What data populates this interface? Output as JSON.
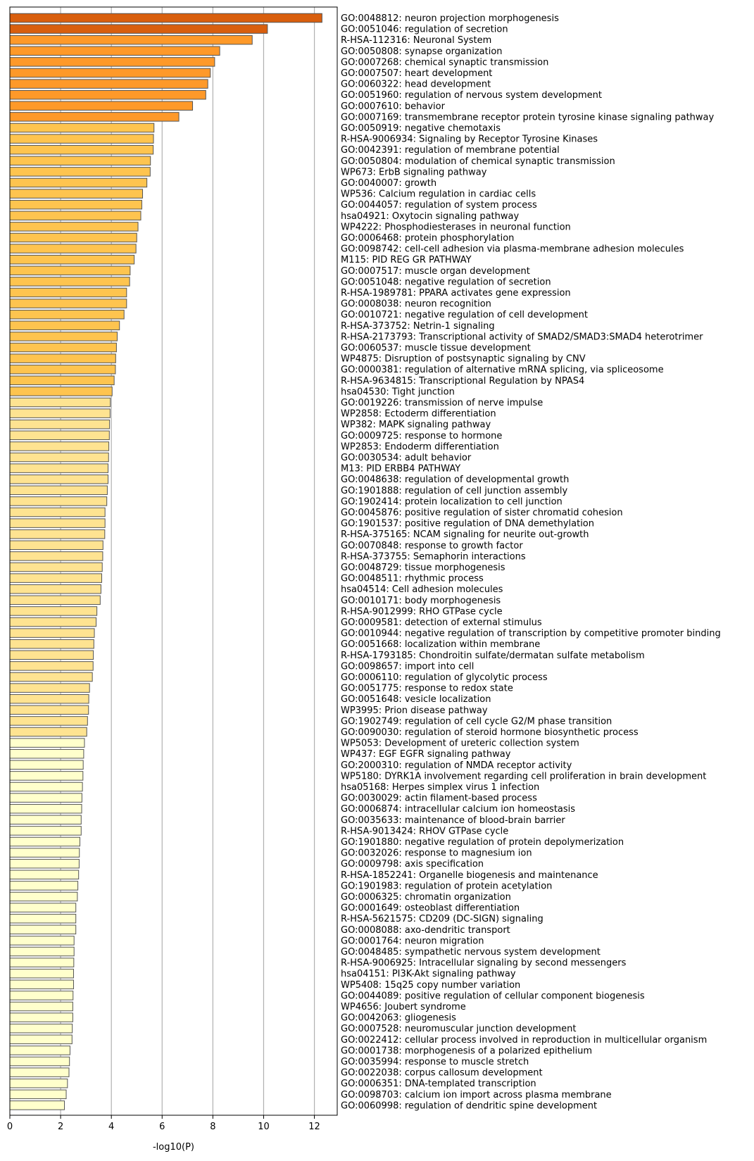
{
  "chart_data": {
    "type": "bar",
    "orientation": "horizontal",
    "xlabel": "-log10(P)",
    "xlim": [
      0,
      12.9
    ],
    "xticks": [
      0,
      2,
      4,
      6,
      8,
      10,
      12
    ],
    "grid": "vertical",
    "colors": {
      "tier1": "#d95f0e",
      "tier2": "#fe9929",
      "tier3": "#fec44f",
      "tier4": "#fee391",
      "tier5": "#ffffcc",
      "edge": "#555555",
      "grid": "#b0b0b0"
    },
    "categories": [
      "GO:0048812: neuron projection morphogenesis",
      "GO:0051046: regulation of secretion",
      "R-HSA-112316: Neuronal System",
      "GO:0050808: synapse organization",
      "GO:0007268: chemical synaptic transmission",
      "GO:0007507: heart development",
      "GO:0060322: head development",
      "GO:0051960: regulation of nervous system development",
      "GO:0007610: behavior",
      "GO:0007169: transmembrane receptor protein tyrosine kinase signaling pathway",
      "GO:0050919: negative chemotaxis",
      "R-HSA-9006934: Signaling by Receptor Tyrosine Kinases",
      "GO:0042391: regulation of membrane potential",
      "GO:0050804: modulation of chemical synaptic transmission",
      "WP673: ErbB signaling pathway",
      "GO:0040007: growth",
      "WP536: Calcium regulation in cardiac cells",
      "GO:0044057: regulation of system process",
      "hsa04921: Oxytocin signaling pathway",
      "WP4222: Phosphodiesterases in neuronal function",
      "GO:0006468: protein phosphorylation",
      "GO:0098742: cell-cell adhesion via plasma-membrane adhesion molecules",
      "M115: PID REG GR PATHWAY",
      "GO:0007517: muscle organ development",
      "GO:0051048: negative regulation of secretion",
      "R-HSA-1989781: PPARA activates gene expression",
      "GO:0008038: neuron recognition",
      "GO:0010721: negative regulation of cell development",
      "R-HSA-373752: Netrin-1 signaling",
      "R-HSA-2173793: Transcriptional activity of SMAD2/SMAD3:SMAD4 heterotrimer",
      "GO:0060537: muscle tissue development",
      "WP4875: Disruption of postsynaptic signaling by CNV",
      "GO:0000381: regulation of alternative mRNA splicing, via spliceosome",
      "R-HSA-9634815: Transcriptional Regulation by NPAS4",
      "hsa04530: Tight junction",
      "GO:0019226: transmission of nerve impulse",
      "WP2858: Ectoderm differentiation",
      "WP382: MAPK signaling pathway",
      "GO:0009725: response to hormone",
      "WP2853: Endoderm differentiation",
      "GO:0030534: adult behavior",
      "M13: PID ERBB4 PATHWAY",
      "GO:0048638: regulation of developmental growth",
      "GO:1901888: regulation of cell junction assembly",
      "GO:1902414: protein localization to cell junction",
      "GO:0045876: positive regulation of sister chromatid cohesion",
      "GO:1901537: positive regulation of DNA demethylation",
      "R-HSA-375165: NCAM signaling for neurite out-growth",
      "GO:0070848: response to growth factor",
      "R-HSA-373755: Semaphorin interactions",
      "GO:0048729: tissue morphogenesis",
      "GO:0048511: rhythmic process",
      "hsa04514: Cell adhesion molecules",
      "GO:0010171: body morphogenesis",
      "R-HSA-9012999: RHO GTPase cycle",
      "GO:0009581: detection of external stimulus",
      "GO:0010944: negative regulation of transcription by competitive promoter binding",
      "GO:0051668: localization within membrane",
      "R-HSA-1793185: Chondroitin sulfate/dermatan sulfate metabolism",
      "GO:0098657: import into cell",
      "GO:0006110: regulation of glycolytic process",
      "GO:0051775: response to redox state",
      "GO:0051648: vesicle localization",
      "WP3995: Prion disease pathway",
      "GO:1902749: regulation of cell cycle G2/M phase transition",
      "GO:0090030: regulation of steroid hormone biosynthetic process",
      "WP5053: Development of ureteric collection system",
      "WP437: EGF EGFR signaling pathway",
      "GO:2000310: regulation of NMDA receptor activity",
      "WP5180: DYRK1A involvement regarding cell proliferation in brain development",
      "hsa05168: Herpes simplex virus 1 infection",
      "GO:0030029: actin filament-based process",
      "GO:0006874: intracellular calcium ion homeostasis",
      "GO:0035633: maintenance of blood-brain barrier",
      "R-HSA-9013424: RHOV GTPase cycle",
      "GO:1901880: negative regulation of protein depolymerization",
      "GO:0032026: response to magnesium ion",
      "GO:0009798: axis specification",
      "R-HSA-1852241: Organelle biogenesis and maintenance",
      "GO:1901983: regulation of protein acetylation",
      "GO:0006325: chromatin organization",
      "GO:0001649: osteoblast differentiation",
      "R-HSA-5621575: CD209 (DC-SIGN) signaling",
      "GO:0008088: axo-dendritic transport",
      "GO:0001764: neuron migration",
      "GO:0048485: sympathetic nervous system development",
      "R-HSA-9006925: Intracellular signaling by second messengers",
      "hsa04151: PI3K-Akt signaling pathway",
      "WP5408: 15q25 copy number variation",
      "GO:0044089: positive regulation of cellular component biogenesis",
      "WP4656: Joubert syndrome",
      "GO:0042063: gliogenesis",
      "GO:0007528: neuromuscular junction development",
      "GO:0022412: cellular process involved in reproduction in multicellular organism",
      "GO:0001738: morphogenesis of a polarized epithelium",
      "GO:0035994: response to muscle stretch",
      "GO:0022038: corpus callosum development",
      "GO:0006351: DNA-templated transcription",
      "GO:0098703: calcium ion import across plasma membrane",
      "GO:0060998: regulation of dendritic spine development"
    ],
    "values": [
      12.3,
      10.15,
      9.55,
      8.27,
      8.07,
      7.9,
      7.8,
      7.72,
      7.2,
      6.66,
      5.68,
      5.66,
      5.65,
      5.54,
      5.53,
      5.4,
      5.23,
      5.2,
      5.16,
      5.05,
      5.0,
      4.97,
      4.9,
      4.74,
      4.72,
      4.6,
      4.6,
      4.5,
      4.32,
      4.23,
      4.2,
      4.17,
      4.16,
      4.11,
      4.03,
      3.96,
      3.95,
      3.93,
      3.92,
      3.9,
      3.89,
      3.87,
      3.87,
      3.84,
      3.82,
      3.75,
      3.75,
      3.74,
      3.67,
      3.66,
      3.64,
      3.62,
      3.59,
      3.56,
      3.43,
      3.4,
      3.33,
      3.31,
      3.29,
      3.28,
      3.25,
      3.14,
      3.11,
      3.1,
      3.06,
      3.03,
      2.94,
      2.91,
      2.89,
      2.88,
      2.86,
      2.84,
      2.83,
      2.81,
      2.81,
      2.76,
      2.74,
      2.73,
      2.71,
      2.68,
      2.66,
      2.6,
      2.6,
      2.6,
      2.53,
      2.53,
      2.52,
      2.51,
      2.51,
      2.49,
      2.48,
      2.48,
      2.46,
      2.45,
      2.37,
      2.35,
      2.33,
      2.27,
      2.22,
      2.15
    ]
  }
}
